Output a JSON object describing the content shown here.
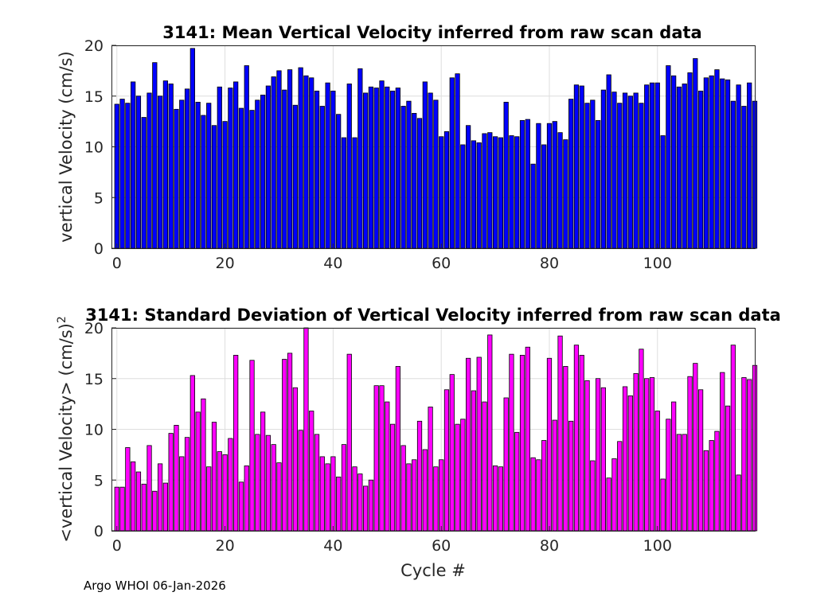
{
  "footer": "Argo WHOI 06-Jan-2026",
  "chart_data": [
    {
      "type": "bar",
      "title": "3141: Mean Vertical Velocity inferred from raw scan data",
      "xlabel": "",
      "ylabel": "vertical Velocity (cm/s)",
      "xlim": [
        -1,
        118
      ],
      "ylim": [
        0,
        20
      ],
      "xticks": [
        0,
        20,
        40,
        60,
        80,
        100
      ],
      "yticks": [
        0,
        5,
        10,
        15,
        20
      ],
      "grid": true,
      "bar_color": "#0000ff",
      "edge_color": "#000000",
      "x_start": 0,
      "values": [
        14.2,
        14.7,
        14.3,
        16.4,
        15.0,
        12.9,
        15.3,
        18.3,
        15.0,
        16.5,
        16.2,
        13.7,
        14.6,
        15.7,
        19.7,
        14.4,
        13.1,
        14.3,
        12.1,
        15.9,
        12.5,
        15.8,
        16.4,
        13.8,
        18.0,
        13.6,
        14.6,
        15.1,
        16.0,
        16.9,
        17.5,
        15.6,
        17.6,
        14.1,
        17.8,
        17.0,
        16.8,
        15.5,
        14.0,
        16.3,
        15.5,
        13.2,
        10.9,
        16.2,
        10.9,
        17.7,
        15.3,
        15.9,
        15.8,
        16.5,
        15.9,
        15.5,
        15.8,
        14.0,
        14.5,
        13.3,
        12.8,
        16.4,
        15.3,
        14.6,
        11.0,
        11.5,
        16.8,
        17.2,
        10.2,
        12.1,
        10.6,
        10.4,
        11.3,
        11.4,
        11.0,
        10.9,
        14.4,
        11.1,
        11.0,
        12.6,
        12.7,
        8.3,
        12.3,
        10.2,
        12.3,
        12.5,
        11.4,
        10.7,
        14.7,
        16.1,
        16.0,
        14.3,
        14.6,
        12.6,
        15.6,
        17.1,
        15.4,
        14.3,
        15.3,
        15.0,
        15.3,
        14.3,
        16.1,
        16.3,
        16.3,
        11.1,
        18.0,
        17.0,
        15.9,
        16.2,
        17.3,
        18.7,
        15.5,
        16.8,
        17.0,
        17.6,
        16.7,
        16.6,
        14.5,
        16.1,
        14.0,
        16.3,
        14.5
      ]
    },
    {
      "type": "bar",
      "title": "3141: Standard Deviation of Vertical Velocity inferred from raw scan data",
      "xlabel": "Cycle #",
      "ylabel": "<vertical Velocity> (cm/s)",
      "ylabel_superscript": "2",
      "xlim": [
        -1,
        118
      ],
      "ylim": [
        0,
        20
      ],
      "xticks": [
        0,
        20,
        40,
        60,
        80,
        100
      ],
      "yticks": [
        0,
        5,
        10,
        15,
        20
      ],
      "grid": true,
      "bar_color": "#ff00ff",
      "edge_color": "#000000",
      "x_start": 0,
      "values": [
        4.3,
        4.3,
        8.2,
        6.8,
        5.8,
        4.6,
        8.4,
        3.9,
        6.6,
        4.7,
        9.6,
        10.4,
        7.3,
        9.2,
        15.3,
        11.7,
        13.0,
        6.3,
        10.7,
        7.8,
        7.5,
        9.1,
        17.3,
        4.8,
        6.4,
        16.8,
        9.5,
        11.7,
        9.4,
        8.5,
        6.7,
        16.9,
        17.5,
        14.1,
        9.9,
        20.0,
        11.8,
        9.5,
        7.3,
        6.6,
        7.3,
        5.3,
        8.5,
        17.4,
        6.3,
        5.6,
        4.4,
        5.0,
        14.3,
        14.3,
        12.7,
        10.5,
        16.2,
        8.4,
        6.6,
        7.0,
        10.8,
        8.0,
        12.2,
        6.3,
        7.0,
        13.9,
        15.4,
        10.5,
        11.0,
        17.0,
        13.8,
        17.1,
        12.7,
        19.3,
        6.4,
        6.3,
        13.1,
        17.4,
        9.7,
        17.3,
        18.1,
        7.2,
        7.0,
        8.9,
        17.0,
        10.9,
        19.2,
        16.2,
        10.8,
        18.3,
        17.3,
        14.8,
        6.9,
        15.0,
        14.1,
        5.2,
        7.1,
        8.8,
        14.2,
        13.3,
        15.5,
        17.9,
        15.0,
        15.1,
        11.8,
        5.1,
        11.0,
        12.7,
        9.5,
        9.5,
        15.2,
        16.5,
        13.9,
        7.9,
        8.9,
        9.8,
        15.6,
        12.3,
        18.3,
        5.5,
        15.1,
        14.9,
        16.3
      ]
    }
  ]
}
